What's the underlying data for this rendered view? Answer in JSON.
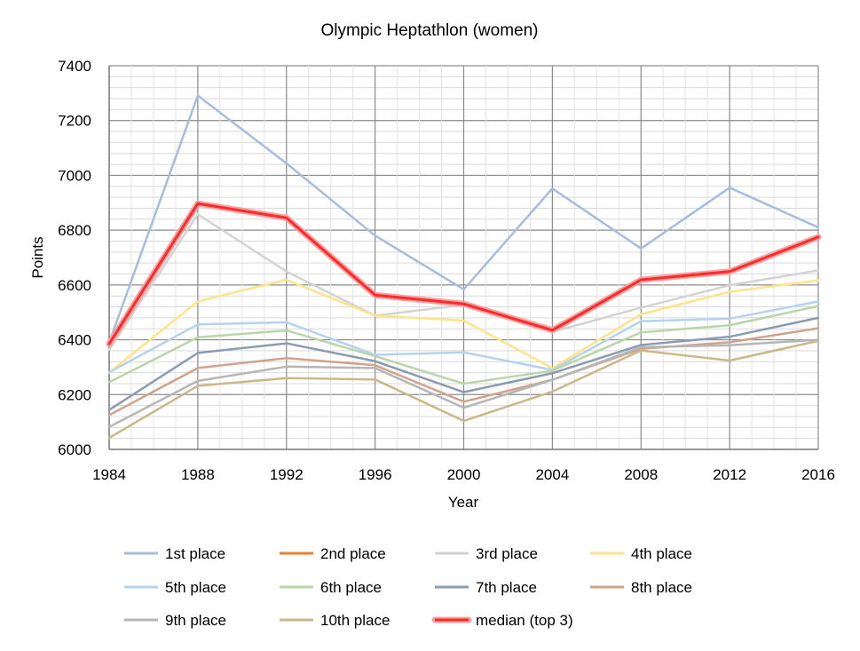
{
  "chart_data": {
    "type": "line",
    "title": "Olympic Heptathlon (women)",
    "xlabel": "Year",
    "ylabel": "Points",
    "x": [
      "1984",
      "1988",
      "1992",
      "1996",
      "2000",
      "2004",
      "2008",
      "2012",
      "2016"
    ],
    "ylim": [
      6000,
      7400
    ],
    "yticks": [
      6000,
      6200,
      6400,
      6600,
      6800,
      7000,
      7200,
      7400
    ],
    "grid": true,
    "legend_position": "bottom",
    "series": [
      {
        "name": "1st place",
        "color": "#a6bedd",
        "values": [
          6390,
          7291,
          7044,
          6780,
          6584,
          6952,
          6733,
          6955,
          6810
        ]
      },
      {
        "name": "2nd place",
        "color": "#ed7d31",
        "values": [
          6385,
          6897,
          6845,
          6563,
          6531,
          6435,
          6619,
          6649,
          6775
        ]
      },
      {
        "name": "3rd place",
        "color": "#d3d3d3",
        "values": [
          6363,
          6858,
          6649,
          6488,
          6527,
          6429,
          6517,
          6599,
          6653
        ]
      },
      {
        "name": "4th place",
        "color": "#ffe38b",
        "values": [
          6280,
          6540,
          6619,
          6488,
          6470,
          6296,
          6493,
          6575,
          6617
        ]
      },
      {
        "name": "5th place",
        "color": "#b5d3ec",
        "values": [
          6281,
          6456,
          6464,
          6345,
          6354,
          6290,
          6468,
          6477,
          6540
        ]
      },
      {
        "name": "6th place",
        "color": "#b9d6a9",
        "values": [
          6245,
          6409,
          6434,
          6340,
          6240,
          6287,
          6427,
          6453,
          6523
        ]
      },
      {
        "name": "7th place",
        "color": "#8a9bb3",
        "values": [
          6144,
          6352,
          6387,
          6322,
          6209,
          6278,
          6381,
          6411,
          6480
        ]
      },
      {
        "name": "8th place",
        "color": "#d0a38a",
        "values": [
          6125,
          6297,
          6333,
          6307,
          6174,
          6254,
          6367,
          6391,
          6442
        ]
      },
      {
        "name": "9th place",
        "color": "#b6b6b6",
        "values": [
          6082,
          6250,
          6302,
          6297,
          6152,
          6254,
          6373,
          6380,
          6400
        ]
      },
      {
        "name": "10th place",
        "color": "#c9b98a",
        "values": [
          6042,
          6232,
          6260,
          6255,
          6104,
          6211,
          6361,
          6324,
          6396
        ]
      },
      {
        "name": "median (top 3)",
        "color": "#ff2a2a",
        "glow": "#f5a3a3",
        "values": [
          6385,
          6897,
          6845,
          6563,
          6531,
          6435,
          6619,
          6649,
          6775
        ]
      }
    ]
  }
}
